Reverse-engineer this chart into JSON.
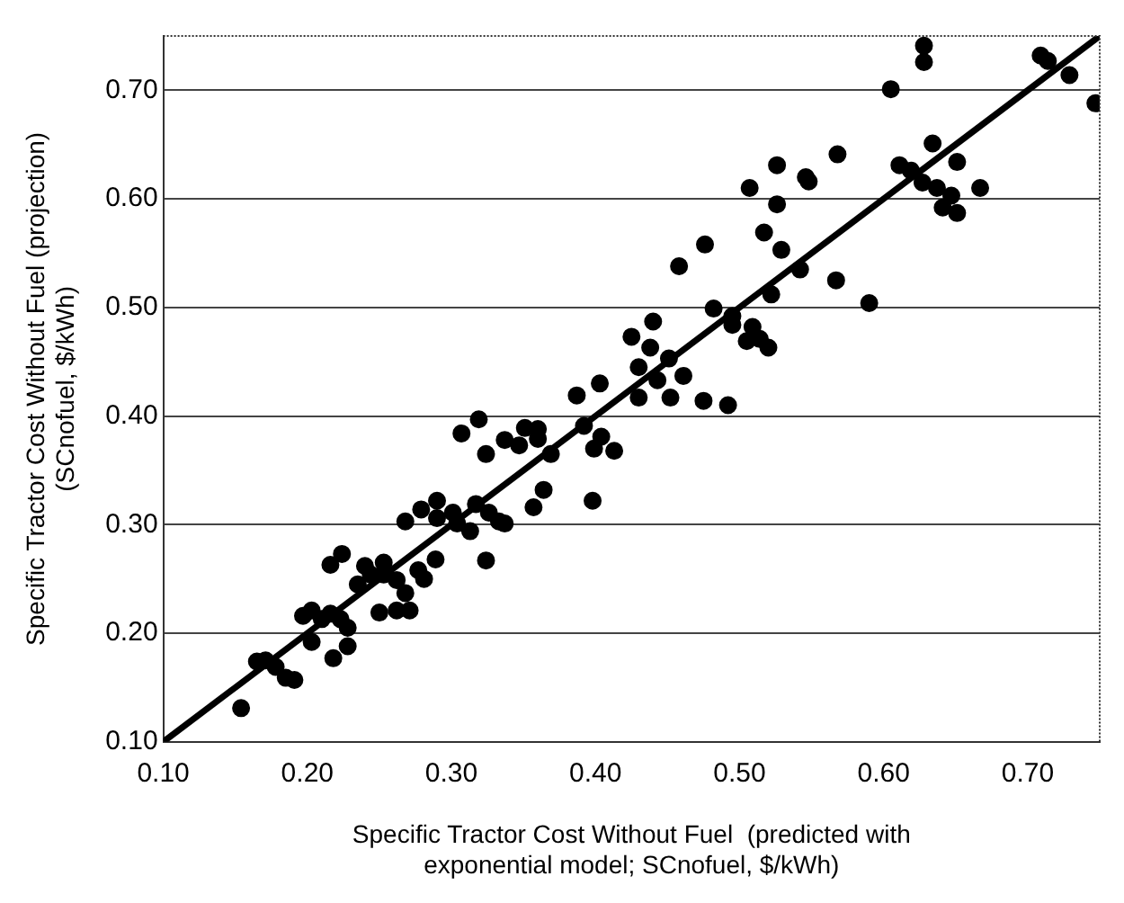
{
  "chart_data": {
    "type": "scatter",
    "xlabel": "Specific Tractor Cost Without Fuel  (predicted with\nexponential model; SCnofuel, $/kWh)",
    "ylabel": "Specific Tractor Cost Without Fuel (projection)\n(SCnofuel, $/kWh)",
    "xlim": [
      0.1,
      0.75
    ],
    "ylim": [
      0.1,
      0.75
    ],
    "xticks": [
      {
        "value": 0.1,
        "label": "0.10"
      },
      {
        "value": 0.2,
        "label": "0.20"
      },
      {
        "value": 0.3,
        "label": "0.30"
      },
      {
        "value": 0.4,
        "label": "0.40"
      },
      {
        "value": 0.5,
        "label": "0.50"
      },
      {
        "value": 0.6,
        "label": "0.60"
      },
      {
        "value": 0.7,
        "label": "0.70"
      }
    ],
    "yticks": [
      {
        "value": 0.1,
        "label": "0.10"
      },
      {
        "value": 0.2,
        "label": "0.20"
      },
      {
        "value": 0.3,
        "label": "0.30"
      },
      {
        "value": 0.4,
        "label": "0.40"
      },
      {
        "value": 0.5,
        "label": "0.50"
      },
      {
        "value": 0.6,
        "label": "0.60"
      },
      {
        "value": 0.7,
        "label": "0.70"
      }
    ],
    "grid": "y",
    "legend": false,
    "series": [
      {
        "type": "scatter",
        "marker": "circle",
        "color": "#000000",
        "x": [
          0.154,
          0.165,
          0.171,
          0.178,
          0.185,
          0.191,
          0.197,
          0.203,
          0.21,
          0.216,
          0.223,
          0.228,
          0.203,
          0.218,
          0.228,
          0.216,
          0.224,
          0.235,
          0.24,
          0.244,
          0.253,
          0.253,
          0.262,
          0.268,
          0.25,
          0.262,
          0.271,
          0.277,
          0.281,
          0.268,
          0.279,
          0.289,
          0.29,
          0.29,
          0.301,
          0.304,
          0.313,
          0.324,
          0.317,
          0.326,
          0.333,
          0.337,
          0.307,
          0.319,
          0.324,
          0.337,
          0.347,
          0.351,
          0.36,
          0.36,
          0.369,
          0.364,
          0.357,
          0.387,
          0.392,
          0.403,
          0.404,
          0.399,
          0.413,
          0.398,
          0.425,
          0.44,
          0.438,
          0.451,
          0.43,
          0.443,
          0.461,
          0.43,
          0.452,
          0.475,
          0.492,
          0.482,
          0.495,
          0.495,
          0.509,
          0.505,
          0.52,
          0.514,
          0.517,
          0.476,
          0.458,
          0.529,
          0.542,
          0.567,
          0.59,
          0.522,
          0.568,
          0.526,
          0.546,
          0.548,
          0.507,
          0.526,
          0.628,
          0.628,
          0.605,
          0.709,
          0.714,
          0.729,
          0.747,
          0.634,
          0.611,
          0.619,
          0.651,
          0.627,
          0.637,
          0.647,
          0.667,
          0.641,
          0.651
        ],
        "values": [
          0.131,
          0.174,
          0.175,
          0.169,
          0.159,
          0.157,
          0.216,
          0.221,
          0.213,
          0.218,
          0.213,
          0.205,
          0.192,
          0.177,
          0.188,
          0.263,
          0.273,
          0.245,
          0.262,
          0.254,
          0.265,
          0.254,
          0.249,
          0.237,
          0.219,
          0.221,
          0.221,
          0.258,
          0.25,
          0.303,
          0.314,
          0.268,
          0.322,
          0.306,
          0.311,
          0.301,
          0.294,
          0.267,
          0.319,
          0.311,
          0.303,
          0.301,
          0.384,
          0.397,
          0.365,
          0.378,
          0.373,
          0.389,
          0.388,
          0.379,
          0.365,
          0.332,
          0.316,
          0.419,
          0.391,
          0.43,
          0.381,
          0.37,
          0.368,
          0.322,
          0.473,
          0.487,
          0.463,
          0.453,
          0.445,
          0.433,
          0.437,
          0.417,
          0.417,
          0.414,
          0.41,
          0.499,
          0.492,
          0.484,
          0.482,
          0.469,
          0.463,
          0.471,
          0.569,
          0.558,
          0.538,
          0.553,
          0.535,
          0.525,
          0.504,
          0.512,
          0.641,
          0.631,
          0.62,
          0.616,
          0.61,
          0.595,
          0.741,
          0.726,
          0.701,
          0.732,
          0.727,
          0.714,
          0.688,
          0.651,
          0.631,
          0.626,
          0.634,
          0.615,
          0.61,
          0.603,
          0.61,
          0.592,
          0.587
        ]
      },
      {
        "type": "line",
        "color": "#000000",
        "x": [
          0.1,
          0.75
        ],
        "values": [
          0.1,
          0.75
        ]
      }
    ]
  }
}
